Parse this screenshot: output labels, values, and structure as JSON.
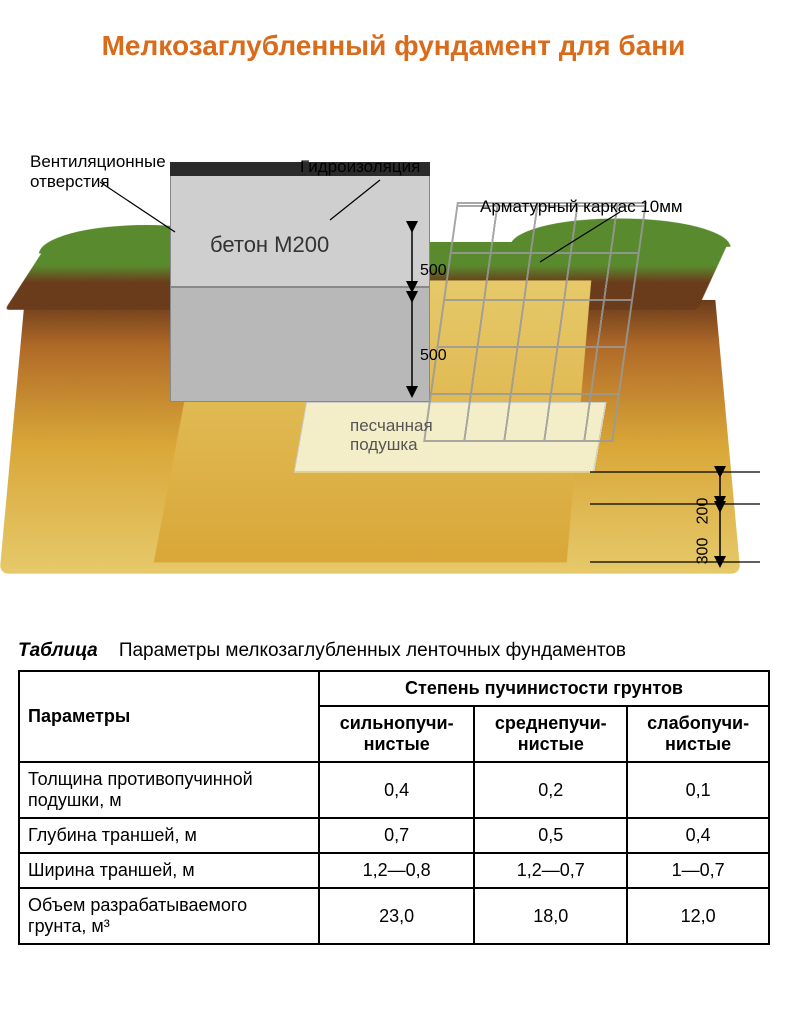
{
  "title": {
    "text": "Мелкозаглубленный фундамент для бани",
    "color": "#d96b1a"
  },
  "diagram": {
    "labels": {
      "vent": "Вентиляционные\nотверстия",
      "waterproof": "Гидроизоляция",
      "rebar": "Арматурный каркас 10мм",
      "concrete": "бетон М200",
      "sand": "песчанная\nподушка"
    },
    "dimensions": {
      "upper_height": "500",
      "lower_height": "500",
      "cushion_depth": "200",
      "trench_extra": "300"
    },
    "colors": {
      "grass": "#5a8a2e",
      "topsoil": "#6a3c1b",
      "subsoil_top": "#b06a28",
      "subsoil_bottom": "#d9a738",
      "sand_light": "#e6c96a",
      "concrete": "#cfcfcf",
      "concrete_dark": "#b8b8b8",
      "waterproof": "#2b2b2b",
      "cushion": "#f3eec8",
      "rebar": "#9a9a9a",
      "background": "#ffffff",
      "label_text": "#000000"
    }
  },
  "table": {
    "caption_label": "Таблица",
    "caption_text": "Параметры мелкозаглубленных ленточных фундаментов",
    "header_group": "Степень пучинистости грунтов",
    "columns": [
      "Параметры",
      "сильнопучи-\nнистые",
      "среднепучи-\nнистые",
      "слабопучи-\nнистые"
    ],
    "rows": [
      {
        "label": "Толщина противопучинной подушки, м",
        "values": [
          "0,4",
          "0,2",
          "0,1"
        ]
      },
      {
        "label": "Глубина траншей, м",
        "values": [
          "0,7",
          "0,5",
          "0,4"
        ]
      },
      {
        "label": "Ширина траншей, м",
        "values": [
          "1,2—0,8",
          "1,2—0,7",
          "1—0,7"
        ]
      },
      {
        "label": "Объем разрабатываемого грунта, м³",
        "values": [
          "23,0",
          "18,0",
          "12,0"
        ]
      }
    ],
    "border_color": "#000000",
    "text_color": "#000000"
  }
}
